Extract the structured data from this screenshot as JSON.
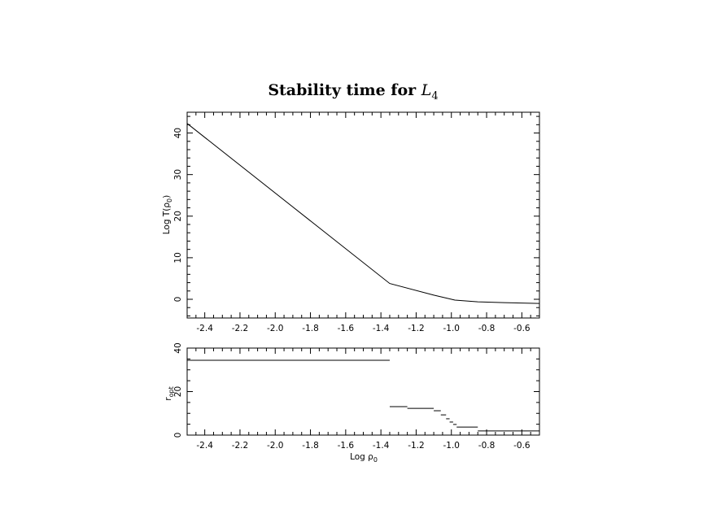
{
  "chart_data": [
    {
      "type": "line",
      "title": "Stability time for L4",
      "title_parts": {
        "text": "Stability time for ",
        "symbol": "L",
        "subscript": "4"
      },
      "xlabel": "",
      "ylabel": "Log T(ρ0)",
      "ylabel_parts": {
        "text": "Log T(ρ",
        "sub": "0",
        "close": ")"
      },
      "xlim": [
        -2.5,
        -0.5
      ],
      "ylim": [
        -4.5,
        45
      ],
      "xticks": [
        -2.4,
        -2.2,
        -2.0,
        -1.8,
        -1.6,
        -1.4,
        -1.2,
        -1.0,
        -0.8,
        -0.6
      ],
      "xtick_labels": [
        "-2.4",
        "-2.2",
        "-2.0",
        "-1.8",
        "-1.6",
        "-1.4",
        "-1.2",
        "-1.0",
        "-0.8",
        "-0.6"
      ],
      "yticks": [
        0,
        10,
        20,
        30,
        40
      ],
      "ytick_labels": [
        "0",
        "10",
        "20",
        "30",
        "40"
      ],
      "grid": false,
      "series": [
        {
          "x": [
            -2.5,
            -1.35,
            -1.1,
            -0.98,
            -0.85,
            -0.7,
            -0.5
          ],
          "y": [
            42.3,
            3.8,
            1.0,
            -0.2,
            -0.6,
            -0.8,
            -1.0
          ]
        }
      ]
    },
    {
      "type": "line",
      "title": "",
      "xlabel": "Log ρ0",
      "xlabel_parts": {
        "text": "Log ρ",
        "sub": "0"
      },
      "ylabel": "r opt",
      "ylabel_parts": {
        "text": "r",
        "sub": "opt"
      },
      "xlim": [
        -2.5,
        -0.5
      ],
      "ylim": [
        0,
        40
      ],
      "xticks": [
        -2.4,
        -2.2,
        -2.0,
        -1.8,
        -1.6,
        -1.4,
        -1.2,
        -1.0,
        -0.8,
        -0.6
      ],
      "xtick_labels": [
        "-2.4",
        "-2.2",
        "-2.0",
        "-1.8",
        "-1.6",
        "-1.4",
        "-1.2",
        "-1.0",
        "-0.8",
        "-0.6"
      ],
      "yticks": [
        0,
        20,
        40
      ],
      "ytick_labels": [
        "0",
        "20",
        "40"
      ],
      "grid": false,
      "steps": [
        {
          "x0": -2.5,
          "x1": -1.35,
          "y": 34.4
        },
        {
          "x0": -1.35,
          "x1": -1.25,
          "y": 13.1
        },
        {
          "x0": -1.25,
          "x1": -1.1,
          "y": 12.3
        },
        {
          "x0": -1.1,
          "x1": -1.06,
          "y": 11.2
        },
        {
          "x0": -1.06,
          "x1": -1.03,
          "y": 9.3
        },
        {
          "x0": -1.03,
          "x1": -1.01,
          "y": 7.5
        },
        {
          "x0": -1.01,
          "x1": -0.99,
          "y": 6.0
        },
        {
          "x0": -0.99,
          "x1": -0.97,
          "y": 4.9
        },
        {
          "x0": -0.97,
          "x1": -0.85,
          "y": 3.7
        },
        {
          "x0": -0.85,
          "x1": -0.5,
          "y": 1.9
        }
      ]
    }
  ]
}
